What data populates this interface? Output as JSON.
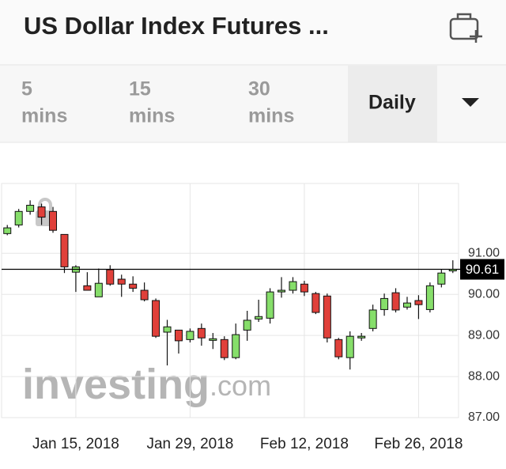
{
  "header": {
    "title": "US Dollar Index Futures ..."
  },
  "tabs": [
    [
      "5",
      "mins"
    ],
    [
      "15",
      "mins"
    ],
    [
      "30",
      "mins"
    ],
    [
      "Daily"
    ]
  ],
  "chart_data": {
    "type": "candlestick",
    "categories": [
      null,
      null,
      null,
      null,
      null,
      null,
      "Jan 15, 2018",
      null,
      null,
      null,
      null,
      null,
      null,
      null,
      null,
      null,
      "Jan 29, 2018",
      null,
      null,
      null,
      null,
      null,
      null,
      null,
      null,
      null,
      "Feb 12, 2018",
      null,
      null,
      null,
      null,
      null,
      null,
      null,
      null,
      null,
      "Feb 26, 2018",
      null,
      null,
      null
    ],
    "open": [
      91.48,
      91.69,
      92.02,
      92.13,
      92.02,
      91.46,
      90.54,
      90.21,
      89.94,
      90.6,
      90.37,
      90.25,
      90.1,
      89.85,
      89.08,
      89.13,
      88.9,
      89.17,
      88.88,
      88.9,
      88.46,
      89.13,
      89.4,
      89.42,
      90.06,
      90.1,
      90.25,
      90.02,
      89.96,
      88.9,
      88.46,
      88.94,
      89.17,
      89.63,
      90.04,
      89.69,
      89.85,
      89.63,
      90.25,
      90.58
    ],
    "high": [
      91.69,
      92.08,
      92.29,
      92.21,
      92.13,
      91.46,
      90.71,
      90.54,
      90.63,
      90.71,
      90.48,
      90.44,
      90.29,
      89.9,
      89.38,
      89.13,
      89.17,
      89.29,
      89.06,
      88.98,
      89.29,
      89.6,
      89.87,
      90.15,
      90.42,
      90.42,
      90.33,
      90.06,
      90.02,
      88.94,
      89.1,
      89.06,
      89.75,
      90.02,
      90.15,
      89.94,
      89.98,
      90.29,
      90.6,
      90.83
    ],
    "low": [
      91.44,
      91.63,
      91.94,
      91.69,
      91.5,
      90.52,
      90.06,
      90.1,
      89.94,
      90.21,
      89.94,
      90.06,
      89.83,
      88.94,
      88.27,
      88.56,
      88.83,
      88.75,
      88.67,
      88.4,
      88.42,
      88.87,
      89.33,
      89.29,
      89.92,
      90.02,
      89.96,
      89.52,
      88.83,
      88.42,
      88.17,
      88.87,
      89.1,
      89.48,
      89.56,
      89.63,
      89.4,
      89.56,
      90.17,
      90.52
    ],
    "close": [
      91.62,
      92.02,
      92.17,
      91.88,
      91.56,
      90.67,
      90.67,
      90.1,
      90.27,
      90.25,
      90.25,
      90.15,
      89.87,
      88.98,
      89.21,
      88.87,
      89.1,
      88.94,
      88.92,
      88.46,
      89.02,
      89.37,
      89.46,
      90.06,
      90.1,
      90.31,
      90.06,
      89.56,
      88.94,
      88.48,
      88.98,
      88.98,
      89.62,
      89.9,
      89.62,
      89.79,
      89.75,
      90.21,
      90.52,
      90.61
    ],
    "up_color": "#86de6a",
    "down_color": "#e0403a",
    "ylim": [
      87,
      92.7
    ],
    "yticks": [
      {
        "value": 87,
        "label": "87.00"
      },
      {
        "value": 88,
        "label": "88.00"
      },
      {
        "value": 89,
        "label": "89.00"
      },
      {
        "value": 90,
        "label": "90.00"
      },
      {
        "value": 91,
        "label": "91.00"
      }
    ],
    "grid": true,
    "last_price": 90.61,
    "watermark": {
      "brand": "investing",
      "suffix": ".com"
    }
  }
}
